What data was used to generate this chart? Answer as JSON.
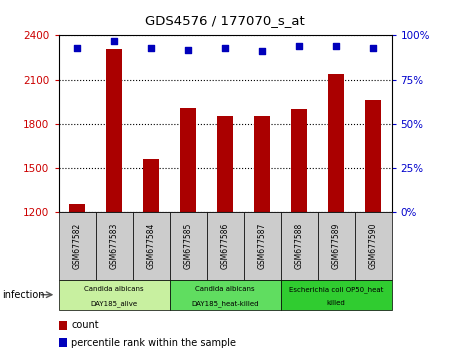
{
  "title": "GDS4576 / 177070_s_at",
  "samples": [
    "GSM677582",
    "GSM677583",
    "GSM677584",
    "GSM677585",
    "GSM677586",
    "GSM677587",
    "GSM677588",
    "GSM677589",
    "GSM677590"
  ],
  "counts": [
    1255,
    2310,
    1565,
    1910,
    1855,
    1855,
    1900,
    2140,
    1960
  ],
  "percentile_ranks": [
    93,
    97,
    93,
    92,
    93,
    91,
    94,
    94,
    93
  ],
  "ylim_left": [
    1200,
    2400
  ],
  "ylim_right": [
    0,
    100
  ],
  "yticks_left": [
    1200,
    1500,
    1800,
    2100,
    2400
  ],
  "yticks_right": [
    0,
    25,
    50,
    75,
    100
  ],
  "groups": [
    {
      "label": "Candida albicans\nDAY185_alive",
      "start": 0,
      "end": 3,
      "color": "#c8f0a0"
    },
    {
      "label": "Candida albicans\nDAY185_heat-killed",
      "start": 3,
      "end": 6,
      "color": "#60dd60"
    },
    {
      "label": "Escherichia coli OP50_heat\nkilled",
      "start": 6,
      "end": 9,
      "color": "#30cc30"
    }
  ],
  "bar_color": "#aa0000",
  "dot_color": "#0000bb",
  "bar_width": 0.45,
  "tick_label_color_left": "#cc0000",
  "tick_label_color_right": "#0000cc",
  "sample_box_color": "#cccccc",
  "legend_count_label": "count",
  "legend_percentile_label": "percentile rank within the sample",
  "infection_label": "infection"
}
